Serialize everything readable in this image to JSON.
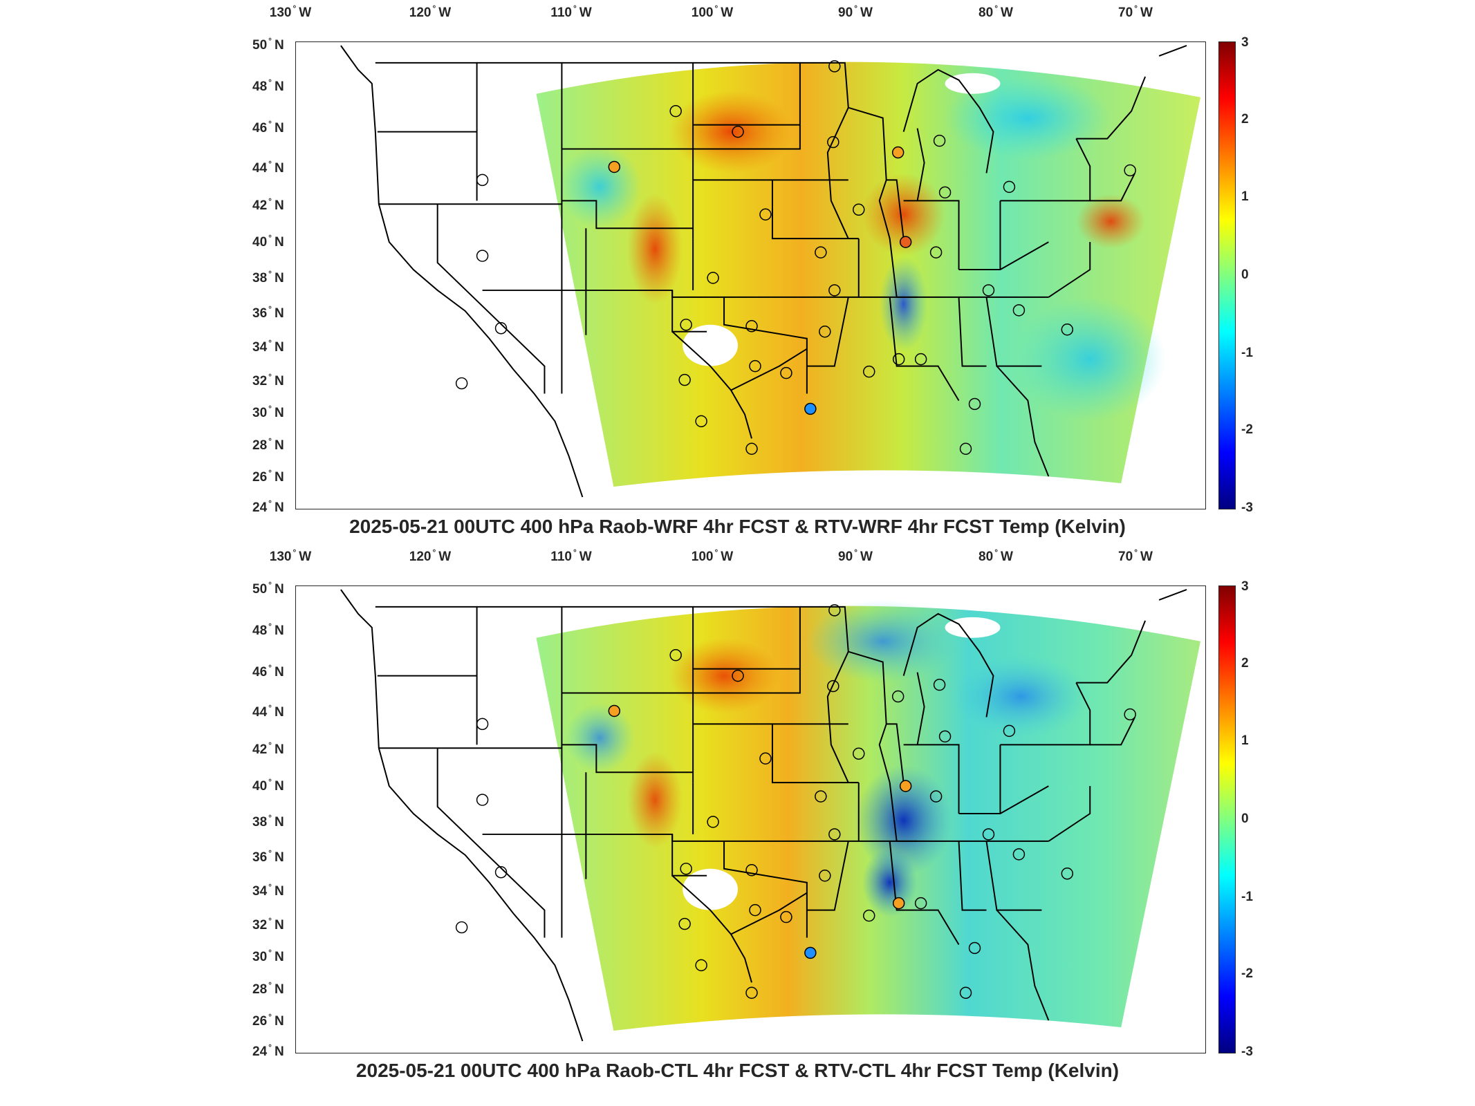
{
  "panels": [
    {
      "id": "top",
      "title": "2025-05-21 00UTC 400 hPa Raob-WRF 4hr FCST & RTV-WRF 4hr FCST Temp (Kelvin)"
    },
    {
      "id": "bottom",
      "title": "2025-05-21 00UTC 400 hPa Raob-CTL 4hr FCST & RTV-CTL 4hr FCST Temp (Kelvin)"
    }
  ],
  "lon_labels": [
    {
      "deg": "130",
      "dir": "W"
    },
    {
      "deg": "120",
      "dir": "W"
    },
    {
      "deg": "110",
      "dir": "W"
    },
    {
      "deg": "100",
      "dir": "W"
    },
    {
      "deg": "90",
      "dir": "W"
    },
    {
      "deg": "80",
      "dir": "W"
    },
    {
      "deg": "70",
      "dir": "W"
    }
  ],
  "lat_labels": [
    {
      "deg": "50",
      "dir": "N"
    },
    {
      "deg": "48",
      "dir": "N"
    },
    {
      "deg": "46",
      "dir": "N"
    },
    {
      "deg": "44",
      "dir": "N"
    },
    {
      "deg": "42",
      "dir": "N"
    },
    {
      "deg": "40",
      "dir": "N"
    },
    {
      "deg": "38",
      "dir": "N"
    },
    {
      "deg": "36",
      "dir": "N"
    },
    {
      "deg": "34",
      "dir": "N"
    },
    {
      "deg": "32",
      "dir": "N"
    },
    {
      "deg": "30",
      "dir": "N"
    },
    {
      "deg": "28",
      "dir": "N"
    },
    {
      "deg": "26",
      "dir": "N"
    },
    {
      "deg": "24",
      "dir": "N"
    }
  ],
  "colorbar": {
    "ticks": [
      "3",
      "2",
      "1",
      "0",
      "-1",
      "-2",
      "-3"
    ],
    "colormap": "jet",
    "range": [
      -3,
      3
    ]
  },
  "colors": {
    "background": "#ffffff",
    "text": "#262626",
    "boundary": "#000000"
  }
}
